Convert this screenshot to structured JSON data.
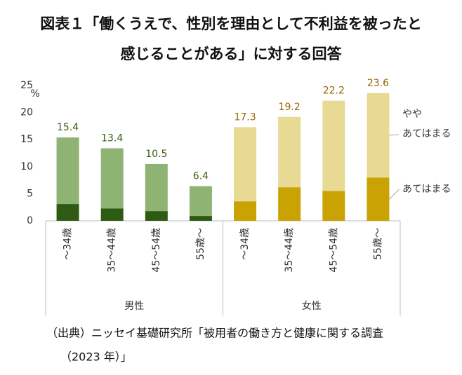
{
  "chart_data": {
    "type": "stacked-bar",
    "title": [
      "図表１「働くうえで、性別を理由として不利益を被ったと",
      "感じることがある」に対する回答"
    ],
    "y_unit": "%",
    "groups": [
      {
        "name": "男性",
        "categories": [
          "〜34歳",
          "35〜44歳",
          "45〜54歳",
          "55歳〜"
        ]
      },
      {
        "name": "女性",
        "categories": [
          "〜34歳",
          "35〜44歳",
          "45〜54歳",
          "55歳〜"
        ]
      }
    ],
    "series": [
      {
        "name": "あてはまる",
        "colors": [
          "#2e5a12",
          "#c9a204"
        ],
        "values": [
          [
            3.1,
            2.3,
            1.8,
            0.9
          ],
          [
            3.6,
            6.2,
            5.5,
            8.0
          ]
        ]
      },
      {
        "name": "やや\nあてはまる",
        "colors": [
          "#8fb373",
          "#e8da94"
        ],
        "values": [
          [
            12.3,
            11.1,
            8.7,
            5.5
          ],
          [
            13.7,
            13.0,
            16.7,
            15.6
          ]
        ]
      }
    ],
    "totals": [
      [
        15.4,
        13.4,
        10.5,
        6.4
      ],
      [
        17.3,
        19.2,
        22.2,
        23.6
      ]
    ],
    "total_colors": [
      "#3a5e10",
      "#9c6500"
    ],
    "ylim": [
      0,
      25
    ],
    "yticks": [
      0,
      5,
      10,
      15,
      20,
      25
    ],
    "source": [
      "（出典）ニッセイ基礎研究所「被用者の働き方と健康に関する調査",
      "（2023 年）」"
    ]
  }
}
